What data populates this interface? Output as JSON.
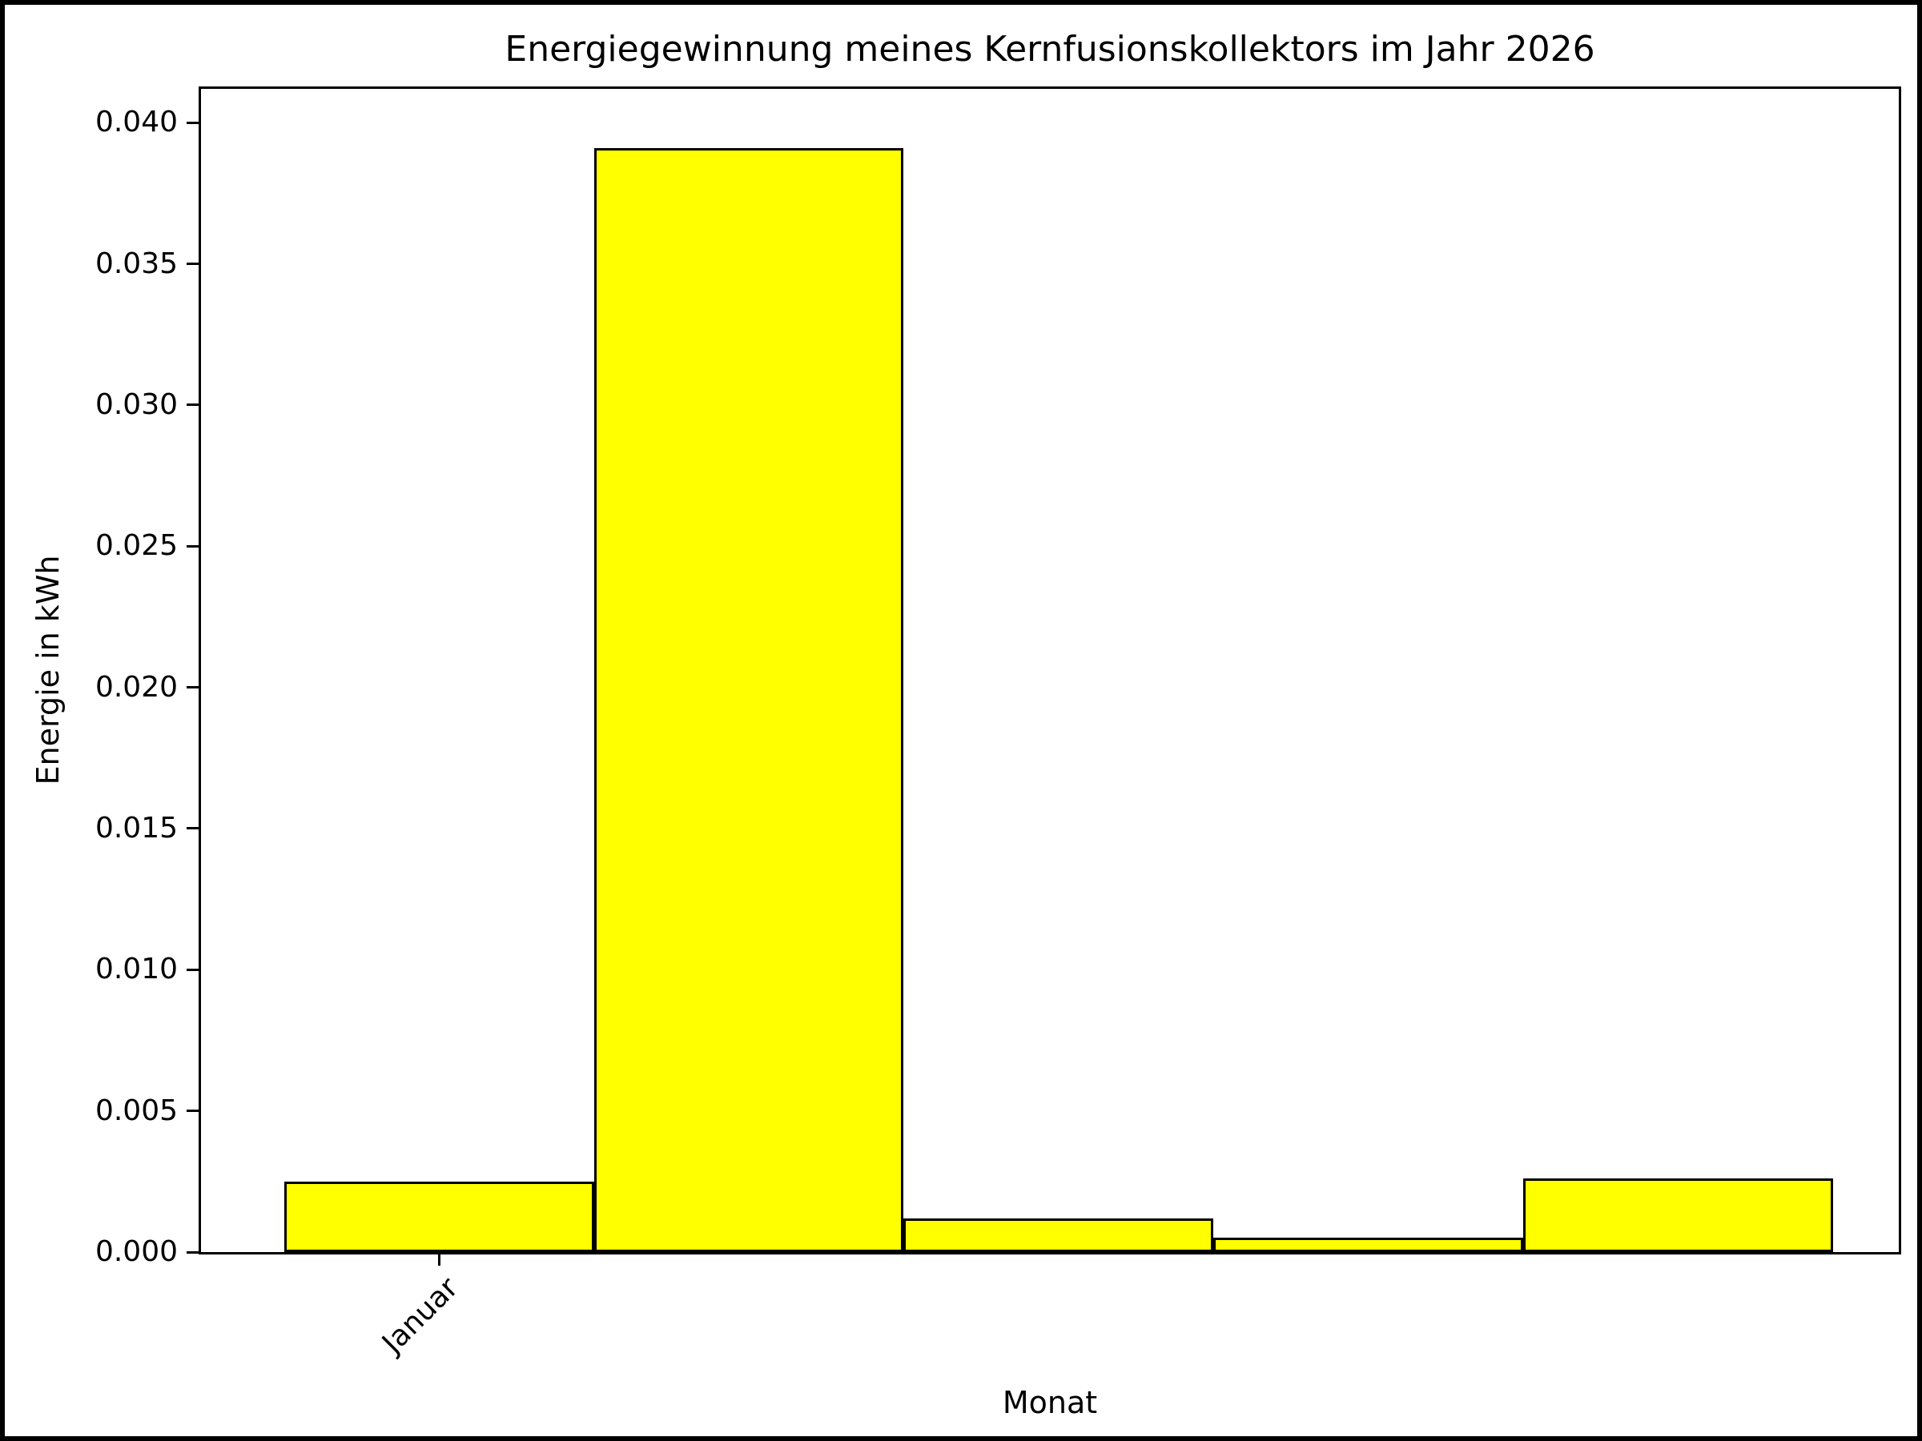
{
  "chart_data": {
    "type": "bar",
    "title": "Energiegewinnung meines Kernfusionskollektors im Jahr 2026",
    "xlabel": "Monat",
    "ylabel": "Energie in kWh",
    "categories": [
      "Januar",
      "",
      "",
      "",
      ""
    ],
    "values": [
      0.0025,
      0.0391,
      0.0012,
      0.0005,
      0.0026
    ],
    "bar_color": "#ffff00",
    "bar_edge_color": "#000000",
    "background_color": "#ffffff",
    "ylim": [
      0,
      0.0412
    ],
    "yticks": [
      0,
      0.005,
      0.01,
      0.015,
      0.02,
      0.025,
      0.03,
      0.035,
      0.04
    ],
    "ytick_labels": [
      "0.000",
      "0.005",
      "0.010",
      "0.015",
      "0.020",
      "0.025",
      "0.030",
      "0.035",
      "0.040"
    ],
    "xtick_labels": [
      "Januar"
    ],
    "xtick_positions_frac": [
      0.1401
    ],
    "bar_start_frac": 0.0489,
    "bar_width_frac": 0.1825,
    "grid": false,
    "legend": null
  }
}
